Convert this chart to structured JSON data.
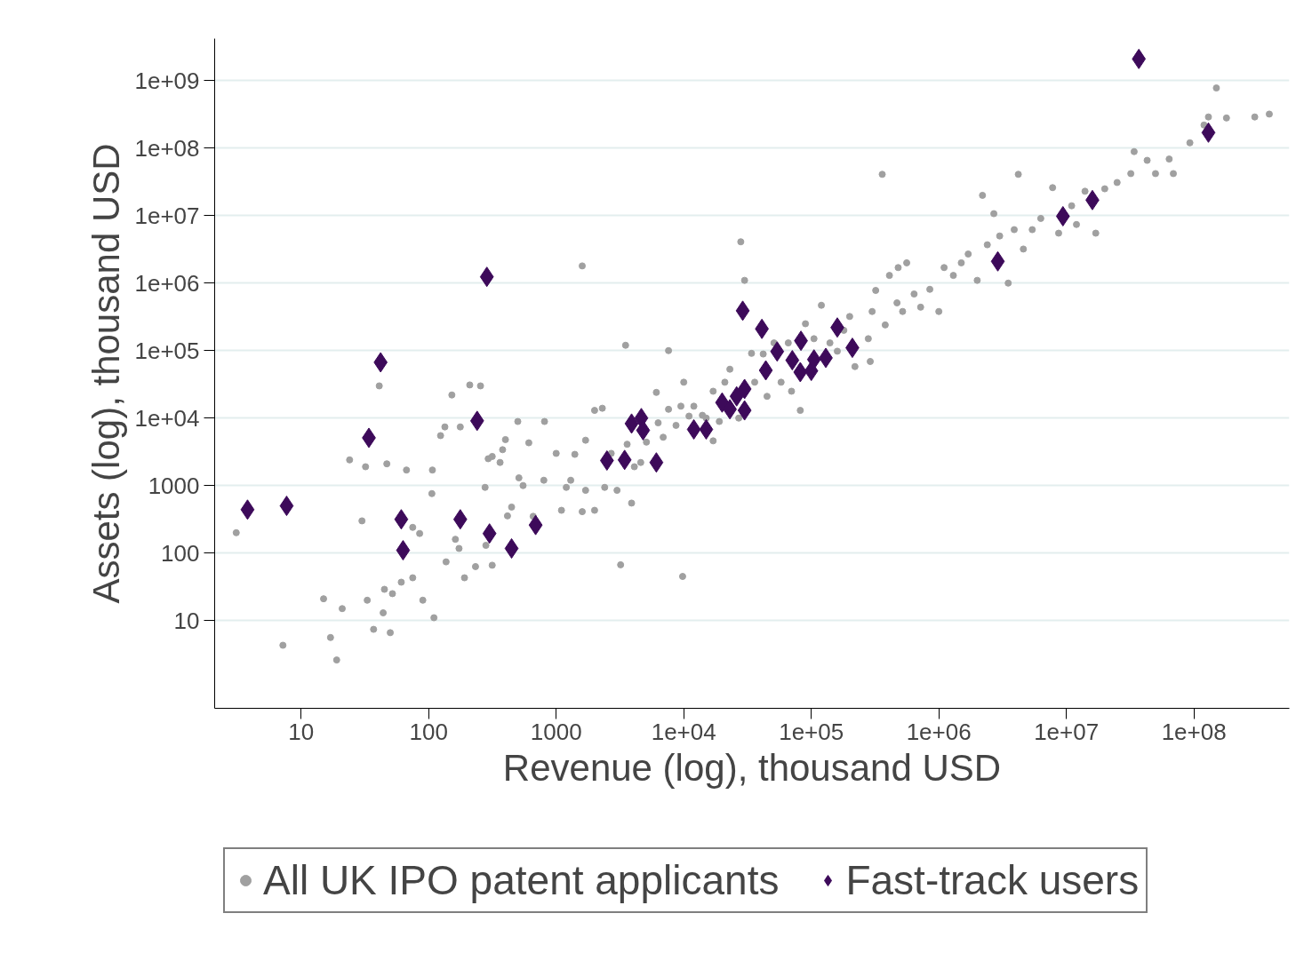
{
  "chart_data": {
    "type": "scatter",
    "xlabel": "Revenue (log), thousand USD",
    "ylabel": "Assets (log), thousand USD",
    "log": "xy",
    "xlim": [
      2.1,
      560000000
    ],
    "ylim": [
      0.5,
      4200000000
    ],
    "xticks": [
      10,
      100,
      1000,
      {
        "value": 10000,
        "label": "1e+04"
      },
      {
        "value": 100000,
        "label": "1e+05"
      },
      {
        "value": 1000000,
        "label": "1e+06"
      },
      {
        "value": 10000000,
        "label": "1e+07"
      },
      {
        "value": 100000000,
        "label": "1e+08"
      }
    ],
    "yticks": [
      10,
      100,
      1000,
      {
        "value": 10000,
        "label": "1e+04"
      },
      {
        "value": 100000,
        "label": "1e+05"
      },
      {
        "value": 1000000,
        "label": "1e+06"
      },
      {
        "value": 10000000,
        "label": "1e+07"
      },
      {
        "value": 100000000,
        "label": "1e+08"
      },
      {
        "value": 1000000000,
        "label": "1e+09"
      }
    ],
    "grid": "y",
    "legend": "bottom",
    "series": [
      {
        "name": "All UK IPO patent applicants",
        "color": "#a0a0a0",
        "marker": "circle",
        "x": [
          3.1,
          7.2,
          15,
          19,
          21,
          24,
          17,
          30,
          32,
          33,
          37,
          41,
          47,
          44,
          45,
          50,
          52,
          61,
          75,
          75,
          67,
          85,
          90,
          107,
          110,
          106,
          124,
          134,
          137,
          152,
          162,
          173,
          191,
          177,
          210,
          255,
          233,
          277,
          293,
          315,
          281,
          315,
          363,
          380,
          415,
          400,
          447,
          500,
          510,
          550,
          610,
          660,
          810,
          800,
          1000,
          1100,
          1200,
          1300,
          1400,
          1600,
          1600,
          1700,
          1700,
          2000,
          2000,
          2300,
          2400,
          2700,
          3000,
          3200,
          3500,
          3600,
          3900,
          4100,
          4600,
          5100,
          6100,
          6300,
          7600,
          6900,
          7600,
          8700,
          9800,
          10000,
          9500,
          11000,
          12000,
          14000,
          15000,
          17000,
          17000,
          19000,
          21000,
          23000,
          27000,
          28000,
          30000,
          34000,
          36000,
          42000,
          45000,
          51000,
          58000,
          66000,
          70000,
          82000,
          90000,
          105000,
          120000,
          140000,
          160000,
          180000,
          200000,
          220000,
          280000,
          290000,
          300000,
          320000,
          360000,
          380000,
          410000,
          470000,
          480000,
          520000,
          560000,
          640000,
          720000,
          850000,
          1000000,
          1100000,
          1300000,
          1500000,
          1700000,
          2000000,
          2200000,
          2400000,
          2700000,
          3000000,
          3500000,
          3900000,
          4200000,
          4600000,
          5400000,
          6300000,
          7800000,
          8700000,
          11000000,
          12000000,
          14000000,
          17000000,
          20000000,
          25000000,
          32000000,
          34000000,
          43000000,
          50000000,
          64000000,
          69000000,
          93000000,
          120000000,
          130000000,
          150000000,
          180000000,
          300000000,
          390000000
        ],
        "values": [
          200,
          4.3,
          21,
          2.6,
          15,
          2400,
          5.6,
          300,
          1900,
          20,
          7.4,
          30000,
          2100,
          13,
          29,
          6.6,
          25,
          37,
          43,
          240,
          1700,
          195,
          20,
          1700,
          11,
          760,
          5500,
          7400,
          74,
          22000,
          160,
          117,
          43,
          7400,
          31000,
          30000,
          63,
          940,
          2500,
          2700,
          130,
          66,
          2200,
          3400,
          355,
          4800,
          480,
          8900,
          1300,
          1000,
          4300,
          350,
          8900,
          1200,
          3000,
          430,
          940,
          1200,
          2900,
          1800000,
          410,
          4700,
          850,
          13000,
          430,
          14000,
          940,
          3000,
          850,
          67,
          120000,
          4100,
          550,
          1900,
          2200,
          4400,
          24000,
          8500,
          100000,
          5200,
          13500,
          7800,
          45,
          34000,
          15000,
          10700,
          15000,
          11000,
          10000,
          25000,
          4600,
          8900,
          34000,
          53000,
          10000,
          4100000,
          1100000,
          91000,
          34000,
          89000,
          21000,
          130000,
          34000,
          130000,
          25000,
          13000,
          250000,
          150000,
          470000,
          130000,
          98000,
          200000,
          320000,
          58000,
          150000,
          69000,
          380000,
          780000,
          41000000,
          240000,
          1300000,
          510000,
          1700000,
          380000,
          2000000,
          690000,
          440000,
          810000,
          380000,
          1700000,
          1300000,
          2000000,
          2700000,
          1100000,
          20000000,
          3700000,
          10700000,
          5000000,
          1000000,
          6200000,
          41000000,
          3200000,
          6200000,
          9100000,
          26000000,
          5500000,
          14000000,
          7400000,
          23000000,
          5500000,
          25000000,
          31000000,
          42000000,
          89000000,
          66000000,
          42000000,
          69000000,
          42000000,
          120000000,
          220000000,
          290000000,
          780000000,
          280000000,
          290000000,
          320000000
        ]
      },
      {
        "name": "Fast-track users",
        "color": "#3d0a5a",
        "marker": "diamond",
        "x": [
          3.8,
          7.7,
          286,
          42,
          34,
          61,
          63,
          240,
          177,
          300,
          447,
          690,
          2500,
          3440,
          6100,
          3900,
          4650,
          4800,
          12000,
          15000,
          20000,
          23000,
          26000,
          30000,
          30000,
          29000,
          41000,
          44000,
          54000,
          71000,
          82000,
          83000,
          100000,
          105000,
          130000,
          160000,
          210000,
          2900000,
          9400000,
          16000000,
          37000000,
          130000000
        ],
        "values": [
          440,
          500,
          1240000,
          67000,
          5100,
          316,
          110,
          9100,
          316,
          195,
          117,
          260,
          2350,
          2400,
          2200,
          8300,
          10000,
          6600,
          6800,
          6800,
          17000,
          13500,
          21000,
          27000,
          13000,
          390000,
          210000,
          51000,
          97000,
          72000,
          48000,
          140000,
          50000,
          74000,
          78000,
          220000,
          110000,
          2100000,
          9800000,
          17000000,
          2100000000,
          170000000
        ]
      }
    ]
  }
}
